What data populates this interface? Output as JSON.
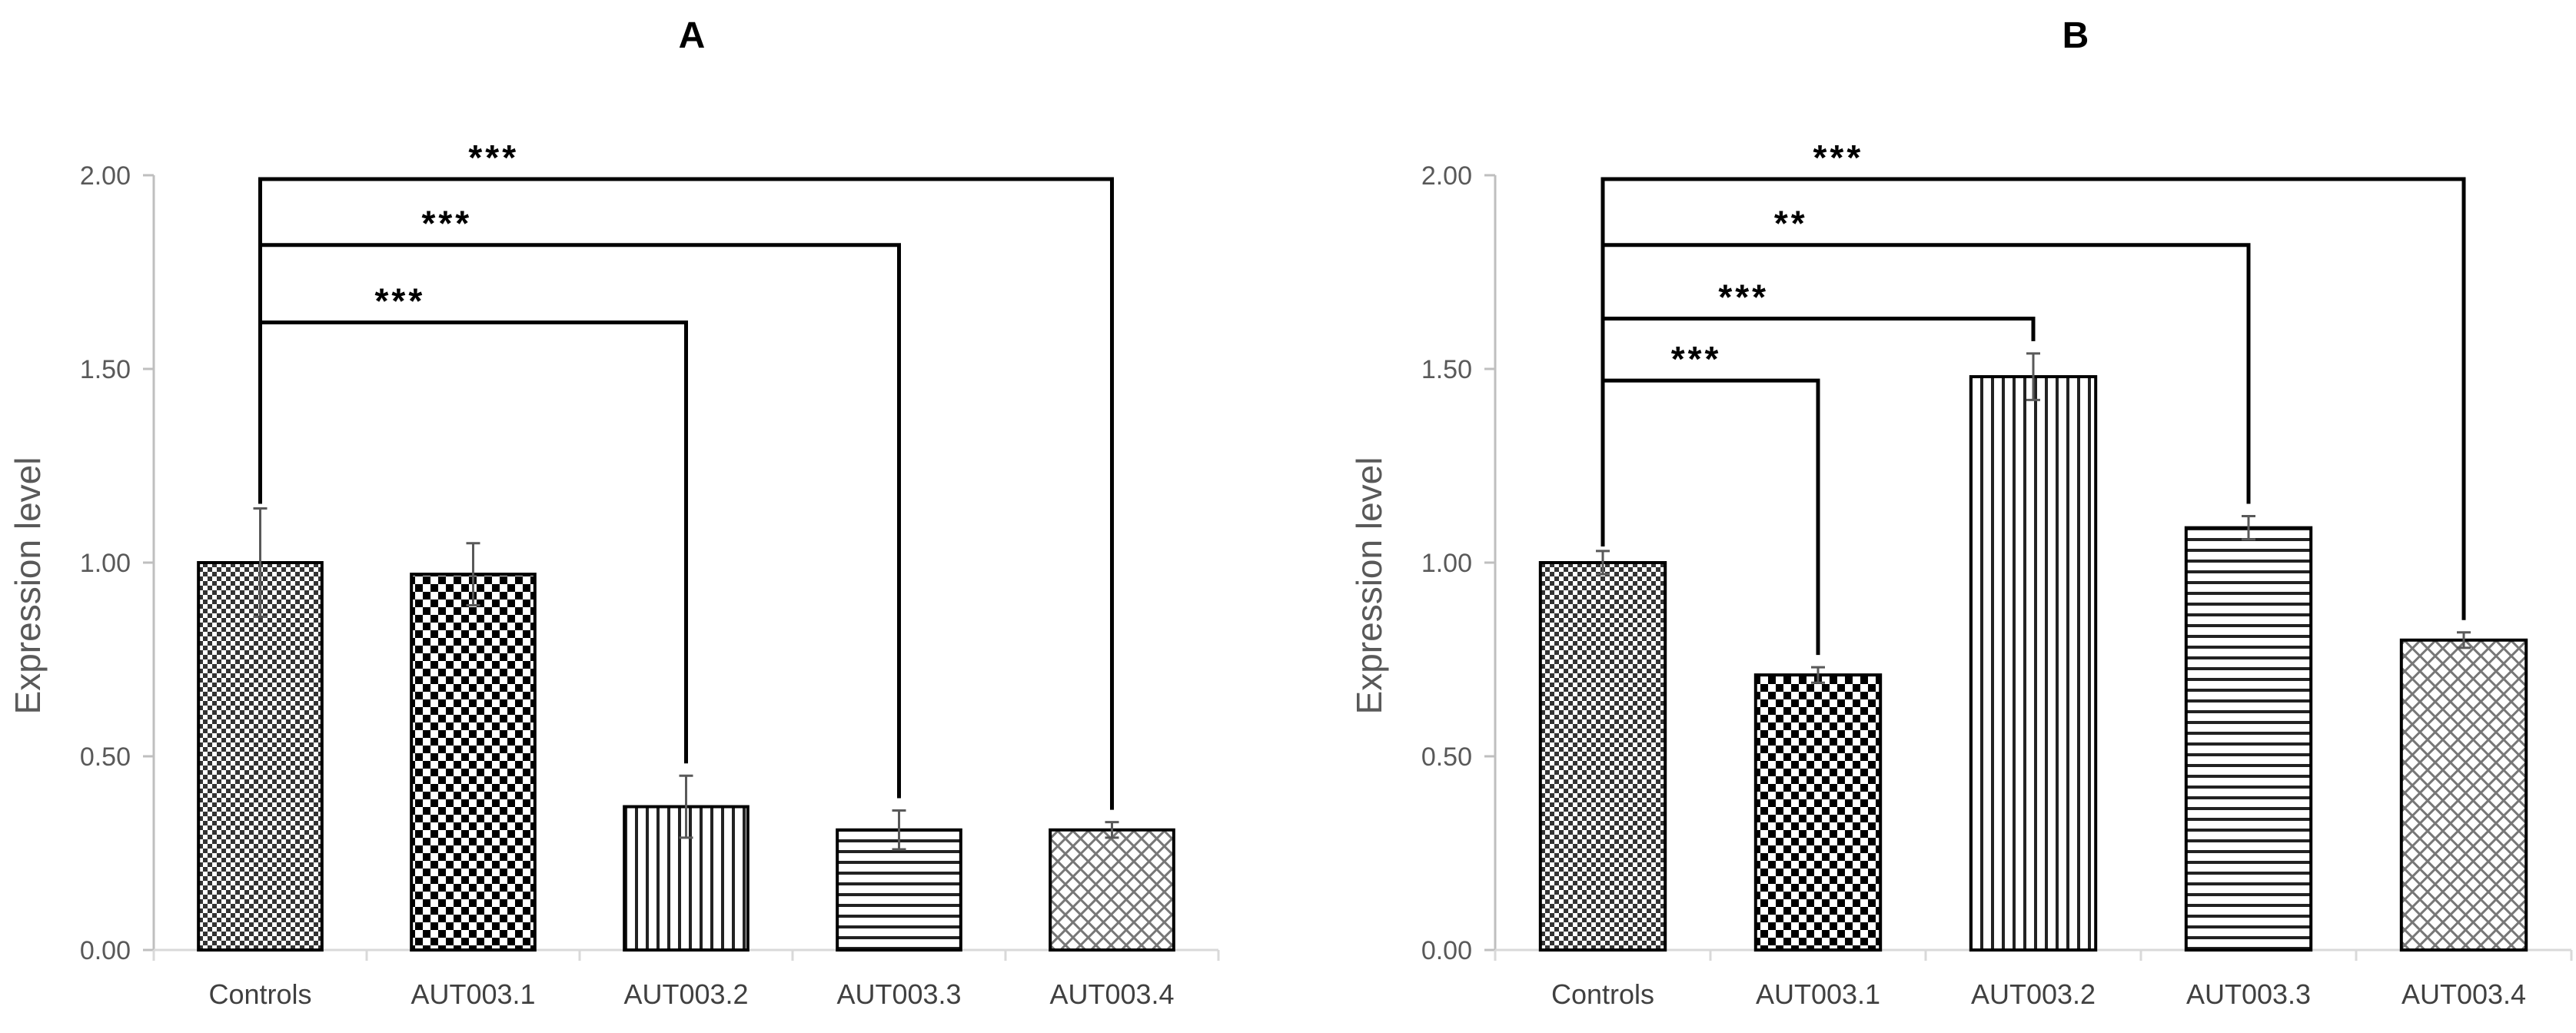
{
  "chart_data": [
    {
      "type": "bar",
      "title": "A",
      "ylabel": "Expression level",
      "categories": [
        "Controls",
        "AUT003.1",
        "AUT003.2",
        "AUT003.3",
        "AUT003.4"
      ],
      "values": [
        1.0,
        0.97,
        0.37,
        0.31,
        0.31
      ],
      "errors": [
        0.14,
        0.08,
        0.08,
        0.05,
        0.02
      ],
      "patterns": [
        "fine-checker",
        "checker",
        "vertical-lines",
        "horizontal-lines",
        "crosshatch"
      ],
      "ylim": [
        0,
        2.0
      ],
      "yticks": [
        "0.00",
        "0.50",
        "1.00",
        "1.50",
        "2.00"
      ],
      "grid": false,
      "significance": [
        {
          "from": "Controls",
          "to": "AUT003.2",
          "label": "***",
          "level": 1.62
        },
        {
          "from": "Controls",
          "to": "AUT003.3",
          "label": "***",
          "level": 1.82
        },
        {
          "from": "Controls",
          "to": "AUT003.4",
          "label": "***",
          "level": 1.99
        }
      ]
    },
    {
      "type": "bar",
      "title": "B",
      "ylabel": "Expression level",
      "categories": [
        "Controls",
        "AUT003.1",
        "AUT003.2",
        "AUT003.3",
        "AUT003.4"
      ],
      "values": [
        1.0,
        0.71,
        1.48,
        1.09,
        0.8
      ],
      "errors": [
        0.03,
        0.02,
        0.06,
        0.03,
        0.02
      ],
      "patterns": [
        "fine-checker",
        "checker",
        "vertical-lines",
        "horizontal-lines",
        "crosshatch"
      ],
      "ylim": [
        0,
        2.0
      ],
      "yticks": [
        "0.00",
        "0.50",
        "1.00",
        "1.50",
        "2.00"
      ],
      "grid": false,
      "significance": [
        {
          "from": "Controls",
          "to": "AUT003.1",
          "label": "***",
          "level": 1.47
        },
        {
          "from": "Controls",
          "to": "AUT003.2",
          "label": "***",
          "level": 1.63
        },
        {
          "from": "Controls",
          "to": "AUT003.3",
          "label": "**",
          "level": 1.82
        },
        {
          "from": "Controls",
          "to": "AUT003.4",
          "label": "***",
          "level": 1.99
        }
      ]
    }
  ]
}
